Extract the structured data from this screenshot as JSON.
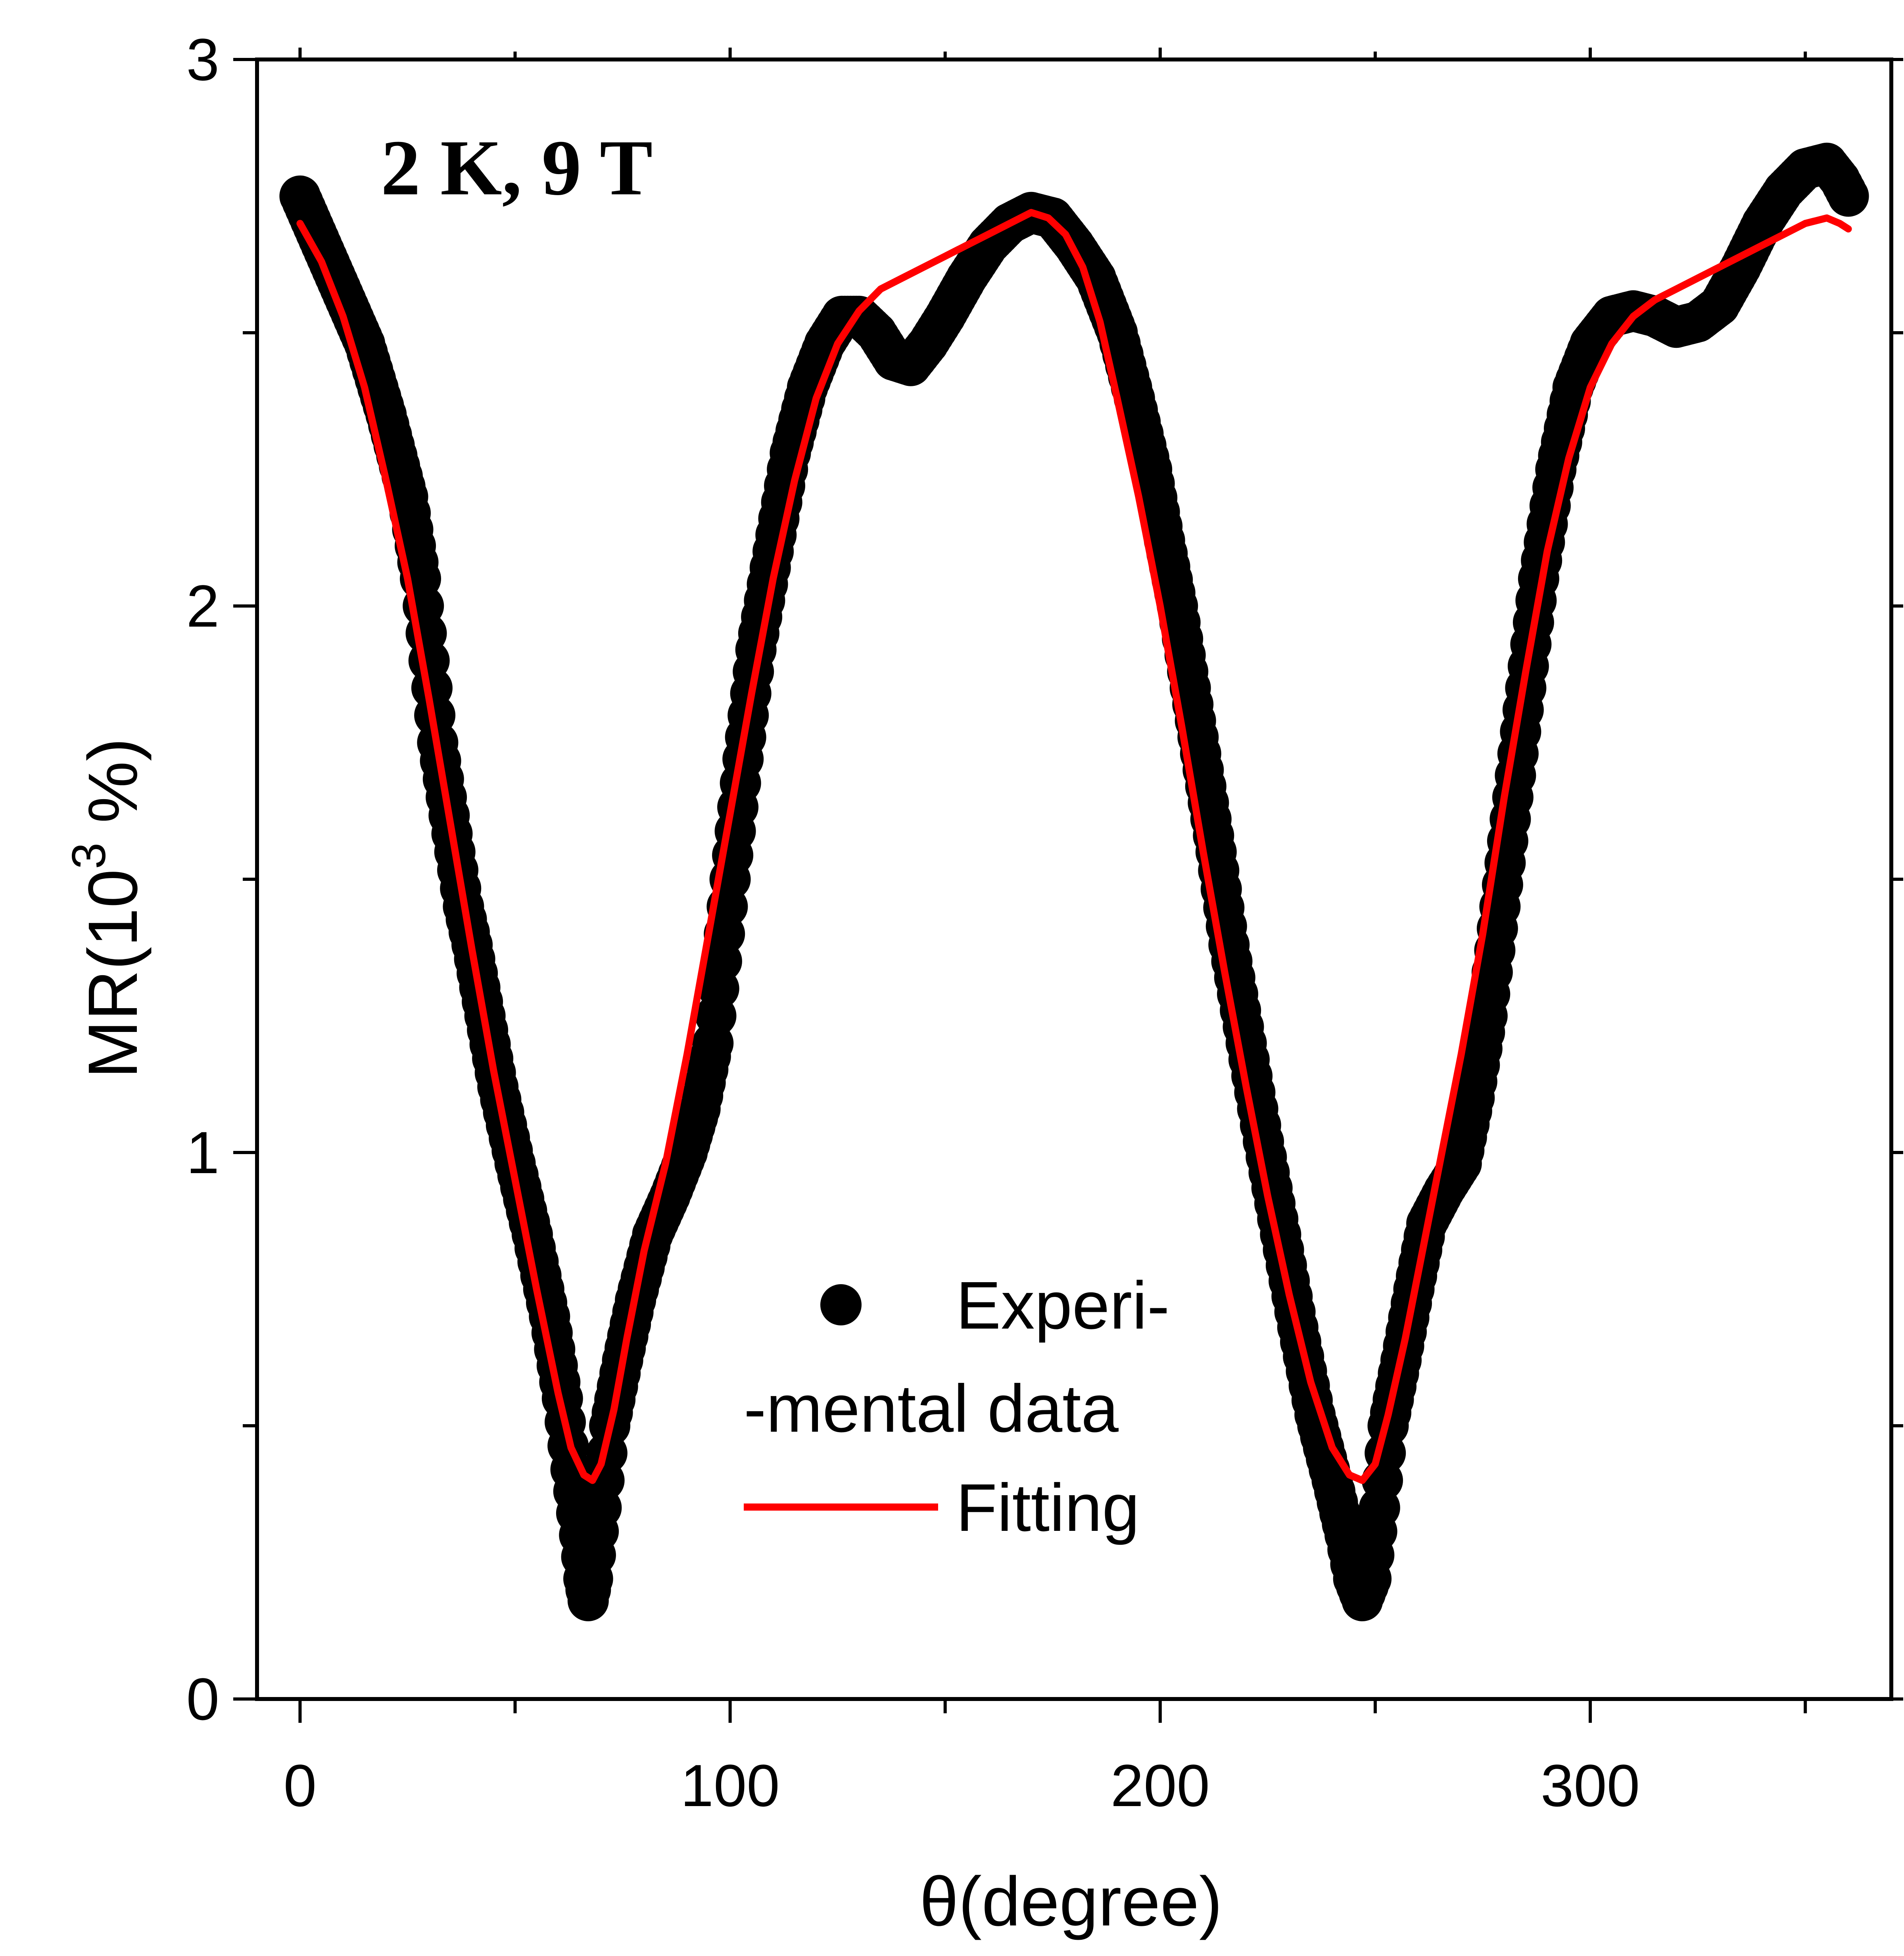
{
  "chart_data": {
    "type": "scatter",
    "title": "",
    "annotation": "2 K, 9 T",
    "xlabel": "θ(degree)",
    "ylabel_main": "MR(10",
    "ylabel_sup": "3",
    "ylabel_tail": " %)",
    "xlim": [
      -10,
      370
    ],
    "ylim": [
      0,
      3
    ],
    "xticks": [
      0,
      100,
      200,
      300
    ],
    "xticks_minor": [
      50,
      150,
      250,
      350
    ],
    "yticks": [
      0,
      1,
      2,
      3
    ],
    "yticks_minor": [
      0.5,
      1.5,
      2.5
    ],
    "xtick_labels": [
      "0",
      "100",
      "200",
      "300"
    ],
    "ytick_labels": [
      "0",
      "1",
      "2",
      "3"
    ],
    "legend": {
      "position": "bottom-center",
      "experimental_line1": "Experi-",
      "experimental_line2": "-mental data",
      "fitting": "Fitting"
    },
    "series": [
      {
        "name": "Experimental data",
        "style": "scatter",
        "color": "#000000",
        "points": [
          [
            0,
            2.75
          ],
          [
            5,
            2.66
          ],
          [
            10,
            2.57
          ],
          [
            15,
            2.48
          ],
          [
            20,
            2.35
          ],
          [
            25,
            2.2
          ],
          [
            28,
            2.05
          ],
          [
            30,
            1.9
          ],
          [
            32,
            1.75
          ],
          [
            34,
            1.65
          ],
          [
            36,
            1.55
          ],
          [
            38,
            1.45
          ],
          [
            40,
            1.38
          ],
          [
            43,
            1.25
          ],
          [
            46,
            1.12
          ],
          [
            50,
            0.98
          ],
          [
            54,
            0.85
          ],
          [
            58,
            0.7
          ],
          [
            61,
            0.55
          ],
          [
            63,
            0.42
          ],
          [
            65,
            0.3
          ],
          [
            66,
            0.22
          ],
          [
            67,
            0.18
          ],
          [
            68,
            0.22
          ],
          [
            70,
            0.35
          ],
          [
            72,
            0.5
          ],
          [
            75,
            0.62
          ],
          [
            78,
            0.73
          ],
          [
            82,
            0.85
          ],
          [
            86,
            0.92
          ],
          [
            90,
            1.0
          ],
          [
            93,
            1.08
          ],
          [
            96,
            1.2
          ],
          [
            100,
            1.5
          ],
          [
            103,
            1.72
          ],
          [
            106,
            1.92
          ],
          [
            110,
            2.1
          ],
          [
            114,
            2.28
          ],
          [
            118,
            2.4
          ],
          [
            122,
            2.48
          ],
          [
            126,
            2.53
          ],
          [
            130,
            2.53
          ],
          [
            134,
            2.5
          ],
          [
            138,
            2.45
          ],
          [
            142,
            2.44
          ],
          [
            146,
            2.48
          ],
          [
            150,
            2.53
          ],
          [
            155,
            2.6
          ],
          [
            160,
            2.66
          ],
          [
            165,
            2.7
          ],
          [
            170,
            2.72
          ],
          [
            175,
            2.71
          ],
          [
            180,
            2.66
          ],
          [
            185,
            2.6
          ],
          [
            190,
            2.5
          ],
          [
            194,
            2.38
          ],
          [
            198,
            2.25
          ],
          [
            201,
            2.12
          ],
          [
            204,
            2.0
          ],
          [
            207,
            1.85
          ],
          [
            210,
            1.7
          ],
          [
            213,
            1.55
          ],
          [
            216,
            1.38
          ],
          [
            220,
            1.2
          ],
          [
            224,
            1.02
          ],
          [
            228,
            0.85
          ],
          [
            232,
            0.68
          ],
          [
            236,
            0.52
          ],
          [
            240,
            0.4
          ],
          [
            243,
            0.3
          ],
          [
            245,
            0.22
          ],
          [
            247,
            0.18
          ],
          [
            249,
            0.22
          ],
          [
            251,
            0.35
          ],
          [
            253,
            0.5
          ],
          [
            256,
            0.62
          ],
          [
            259,
            0.75
          ],
          [
            262,
            0.87
          ],
          [
            266,
            0.93
          ],
          [
            270,
            0.98
          ],
          [
            273,
            1.1
          ],
          [
            276,
            1.25
          ],
          [
            279,
            1.45
          ],
          [
            282,
            1.65
          ],
          [
            285,
            1.85
          ],
          [
            288,
            2.05
          ],
          [
            292,
            2.25
          ],
          [
            296,
            2.4
          ],
          [
            300,
            2.48
          ],
          [
            305,
            2.53
          ],
          [
            310,
            2.54
          ],
          [
            315,
            2.53
          ],
          [
            320,
            2.51
          ],
          [
            325,
            2.52
          ],
          [
            330,
            2.55
          ],
          [
            335,
            2.62
          ],
          [
            340,
            2.7
          ],
          [
            345,
            2.76
          ],
          [
            350,
            2.8
          ],
          [
            355,
            2.81
          ],
          [
            358,
            2.78
          ],
          [
            360,
            2.75
          ]
        ]
      },
      {
        "name": "Fitting",
        "style": "line",
        "color": "#ff0000",
        "points": [
          [
            0,
            2.7
          ],
          [
            5,
            2.63
          ],
          [
            10,
            2.53
          ],
          [
            15,
            2.4
          ],
          [
            20,
            2.23
          ],
          [
            25,
            2.05
          ],
          [
            30,
            1.83
          ],
          [
            35,
            1.6
          ],
          [
            40,
            1.37
          ],
          [
            45,
            1.15
          ],
          [
            50,
            0.95
          ],
          [
            55,
            0.75
          ],
          [
            60,
            0.56
          ],
          [
            63,
            0.46
          ],
          [
            66,
            0.41
          ],
          [
            68,
            0.4
          ],
          [
            70,
            0.43
          ],
          [
            73,
            0.53
          ],
          [
            76,
            0.66
          ],
          [
            80,
            0.82
          ],
          [
            85,
            0.98
          ],
          [
            90,
            1.18
          ],
          [
            95,
            1.4
          ],
          [
            100,
            1.62
          ],
          [
            105,
            1.84
          ],
          [
            110,
            2.05
          ],
          [
            115,
            2.23
          ],
          [
            120,
            2.38
          ],
          [
            125,
            2.48
          ],
          [
            130,
            2.54
          ],
          [
            135,
            2.58
          ],
          [
            140,
            2.6
          ],
          [
            145,
            2.62
          ],
          [
            150,
            2.64
          ],
          [
            155,
            2.66
          ],
          [
            160,
            2.68
          ],
          [
            165,
            2.7
          ],
          [
            170,
            2.72
          ],
          [
            174,
            2.71
          ],
          [
            178,
            2.68
          ],
          [
            182,
            2.62
          ],
          [
            186,
            2.52
          ],
          [
            190,
            2.38
          ],
          [
            195,
            2.2
          ],
          [
            200,
            2.0
          ],
          [
            205,
            1.78
          ],
          [
            210,
            1.55
          ],
          [
            215,
            1.33
          ],
          [
            220,
            1.12
          ],
          [
            225,
            0.92
          ],
          [
            230,
            0.74
          ],
          [
            235,
            0.58
          ],
          [
            240,
            0.46
          ],
          [
            244,
            0.41
          ],
          [
            247,
            0.4
          ],
          [
            250,
            0.43
          ],
          [
            253,
            0.52
          ],
          [
            257,
            0.66
          ],
          [
            261,
            0.82
          ],
          [
            265,
            0.98
          ],
          [
            270,
            1.18
          ],
          [
            275,
            1.4
          ],
          [
            280,
            1.65
          ],
          [
            285,
            1.88
          ],
          [
            290,
            2.1
          ],
          [
            295,
            2.27
          ],
          [
            300,
            2.4
          ],
          [
            305,
            2.48
          ],
          [
            310,
            2.53
          ],
          [
            315,
            2.56
          ],
          [
            320,
            2.58
          ],
          [
            325,
            2.6
          ],
          [
            330,
            2.62
          ],
          [
            335,
            2.64
          ],
          [
            340,
            2.66
          ],
          [
            345,
            2.68
          ],
          [
            350,
            2.7
          ],
          [
            355,
            2.71
          ],
          [
            358,
            2.7
          ],
          [
            360,
            2.69
          ]
        ]
      }
    ]
  }
}
